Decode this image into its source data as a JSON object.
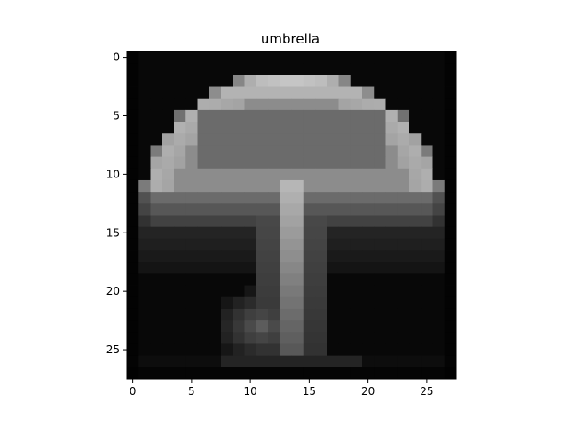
{
  "chart_data": {
    "type": "heatmap",
    "title": "umbrella",
    "xlabel": "",
    "ylabel": "",
    "colormap": "gray",
    "value_range": [
      0,
      1
    ],
    "rows": 28,
    "cols": 28,
    "xlim": [
      -0.5,
      27.5
    ],
    "ylim": [
      27.5,
      -0.5
    ],
    "x_ticks": [
      0,
      5,
      10,
      15,
      20,
      25
    ],
    "y_ticks": [
      0,
      5,
      10,
      15,
      20,
      25
    ],
    "grid": false,
    "description_of_values": "average pixel intensity per cell (0=black, 1=white)"
  }
}
